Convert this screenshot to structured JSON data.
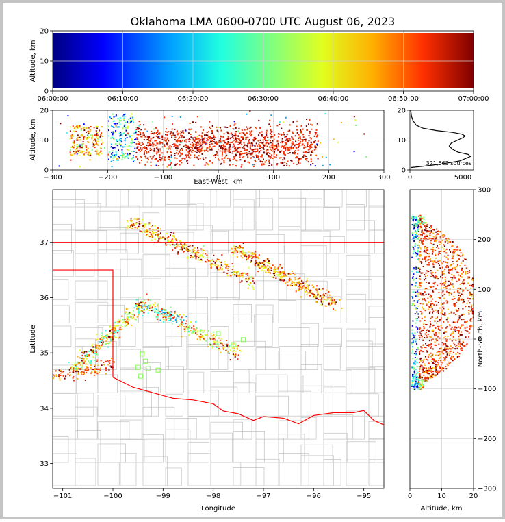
{
  "chart_data": {
    "title": "Oklahoma LMA 0600-0700 UTC August 06, 2023",
    "colormap": [
      "#000080",
      "#0000ff",
      "#00a0ff",
      "#20ffe0",
      "#80ff80",
      "#e0ff20",
      "#ffb000",
      "#ff3000",
      "#800000"
    ],
    "border_color": "#ff0000",
    "county_color": "#c8c8c8",
    "panels": [
      {
        "id": "time-height",
        "type": "scatter",
        "xlabel": "",
        "ylabel": "Altitude, km",
        "xlim": [
          "06:00:00",
          "07:00:00"
        ],
        "ylim": [
          0,
          20
        ],
        "x_ticks": [
          "06:00:00",
          "06:10:00",
          "06:20:00",
          "06:30:00",
          "06:40:00",
          "06:50:00",
          "07:00:00"
        ],
        "y_ticks": [
          "0",
          "10",
          "20"
        ]
      },
      {
        "id": "ew-height",
        "type": "scatter",
        "xlabel": "East-West, km",
        "ylabel": "Altitude, km",
        "xlim": [
          -300,
          300
        ],
        "ylim": [
          0,
          20
        ],
        "x_ticks": [
          "−300",
          "−200",
          "−100",
          "0",
          "100",
          "200",
          "300"
        ],
        "y_ticks": [
          "0",
          "10",
          "20"
        ]
      },
      {
        "id": "alt-histogram",
        "type": "line",
        "xlim": [
          0,
          6000
        ],
        "ylim": [
          0,
          20
        ],
        "x_ticks": [
          "0",
          "5000"
        ],
        "y_ticks": [
          "0",
          "10",
          "20"
        ],
        "annotation": "321,563 sources",
        "profile": [
          [
            100,
            0.8
          ],
          [
            1200,
            1.2
          ],
          [
            3000,
            2.0
          ],
          [
            4700,
            3.0
          ],
          [
            5700,
            4.5
          ],
          [
            5500,
            5.2
          ],
          [
            4500,
            6.0
          ],
          [
            4000,
            7.0
          ],
          [
            3700,
            8.0
          ],
          [
            3900,
            9.0
          ],
          [
            4500,
            10.0
          ],
          [
            5000,
            10.8
          ],
          [
            5200,
            11.4
          ],
          [
            4900,
            12.0
          ],
          [
            4000,
            12.6
          ],
          [
            2500,
            13.2
          ],
          [
            1200,
            14.0
          ],
          [
            600,
            15.0
          ],
          [
            300,
            16.5
          ],
          [
            150,
            18.0
          ],
          [
            80,
            20.0
          ]
        ]
      },
      {
        "id": "plan-view",
        "type": "scatter",
        "xlabel": "Longitude",
        "ylabel": "Latitude",
        "xlim": [
          -101.2,
          -94.6
        ],
        "ylim": [
          32.55,
          37.95
        ],
        "x_ticks": [
          "−101",
          "−100",
          "−99",
          "−98",
          "−97",
          "−96",
          "−95"
        ],
        "y_ticks": [
          "33",
          "34",
          "35",
          "36",
          "37"
        ]
      },
      {
        "id": "ns-height",
        "type": "scatter",
        "xlabel": "Altitude, km",
        "ylabel": "North-South, km",
        "xlim": [
          0,
          20
        ],
        "ylim": [
          -300,
          300
        ],
        "x_ticks": [
          "0",
          "10",
          "20"
        ],
        "y_ticks": [
          "−300",
          "−200",
          "−100",
          "0",
          "100",
          "200",
          "300"
        ]
      }
    ]
  }
}
